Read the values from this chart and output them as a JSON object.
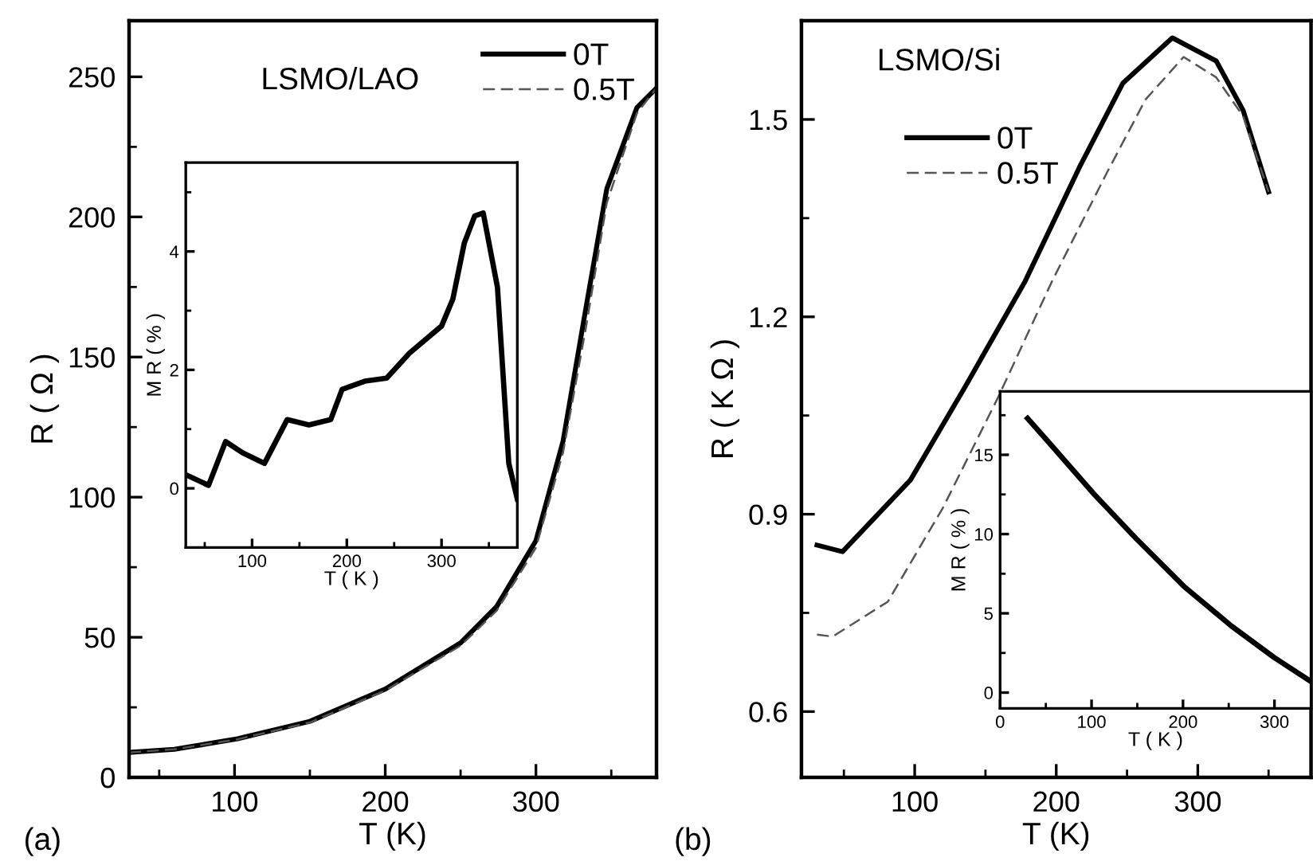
{
  "chart_data": [
    {
      "type": "line",
      "xlabel": "T (K)",
      "ylabel": "R ( Ω )",
      "xlim": [
        30,
        380
      ],
      "ylim": [
        0,
        270
      ],
      "xticks": [
        {
          "value": 50,
          "label": null
        },
        100,
        {
          "value": 150,
          "label": null
        },
        200,
        {
          "value": 250,
          "label": null
        },
        300,
        {
          "value": 350,
          "label": null
        }
      ],
      "yticks": [
        0,
        {
          "value": 25,
          "label": null
        },
        50,
        {
          "value": 75,
          "label": null
        },
        100,
        {
          "value": 125,
          "label": null
        },
        150,
        {
          "value": 175,
          "label": null
        },
        200,
        {
          "value": 225,
          "label": null
        },
        250
      ],
      "legend": "top right",
      "grid": false,
      "annotations": [
        "(a)",
        "LSMO/LAO"
      ],
      "series": [
        {
          "name": "0T",
          "color": "#000000",
          "line_style": "solid",
          "x": [
            30,
            60,
            102,
            150,
            200,
            250,
            274,
            300,
            318,
            333,
            347,
            367,
            380
          ],
          "values": [
            8.9,
            10,
            13.8,
            20,
            31.5,
            48,
            61,
            84.5,
            120,
            167,
            210,
            239,
            246
          ]
        },
        {
          "name": "0.5T",
          "color": "#555555",
          "line_style": "dashed",
          "x": [
            30,
            60,
            102,
            150,
            200,
            250,
            274,
            300,
            318,
            333,
            347,
            367,
            380
          ],
          "values": [
            8.9,
            10,
            13.6,
            19.6,
            31,
            47,
            59.5,
            82,
            116,
            160,
            205,
            237,
            246
          ]
        }
      ]
    },
    {
      "type": "line",
      "xlabel": "T ( K )",
      "ylabel": "M R ( % )",
      "xlim": [
        30,
        380
      ],
      "ylim": [
        -1,
        5.5
      ],
      "xticks": [
        {
          "value": 50,
          "label": null
        },
        100,
        {
          "value": 150,
          "label": null
        },
        200,
        {
          "value": 250,
          "label": null
        },
        300,
        {
          "value": 350,
          "label": null
        }
      ],
      "yticks": [
        0,
        {
          "value": 1,
          "label": null
        },
        2,
        {
          "value": 3,
          "label": null
        },
        4,
        {
          "value": 5,
          "label": null
        }
      ],
      "grid": false,
      "series": [
        {
          "color": "#000000",
          "line_style": "solid",
          "x": [
            30,
            54,
            72,
            90,
            113,
            137,
            160,
            183,
            195,
            219,
            242,
            266,
            300,
            312,
            324,
            335,
            344,
            359,
            371,
            380
          ],
          "values": [
            0.23,
            0.05,
            0.79,
            0.6,
            0.42,
            1.16,
            1.07,
            1.16,
            1.67,
            1.81,
            1.86,
            2.28,
            2.74,
            3.2,
            4.14,
            4.6,
            4.65,
            3.4,
            0.42,
            -0.18
          ]
        }
      ]
    },
    {
      "type": "line",
      "xlabel": "T (K)",
      "ylabel": "R ( K Ω )",
      "xlim": [
        20,
        380
      ],
      "ylim": [
        0.5,
        1.65
      ],
      "xticks": [
        {
          "value": 50,
          "label": null
        },
        100,
        {
          "value": 150,
          "label": null
        },
        200,
        {
          "value": 250,
          "label": null
        },
        300,
        {
          "value": 350,
          "label": null
        }
      ],
      "yticks": [
        0.6,
        {
          "value": 0.75,
          "label": null
        },
        0.9,
        {
          "value": 1.05,
          "label": null
        },
        1.2,
        {
          "value": 1.35,
          "label": null
        },
        1.5
      ],
      "legend": "top left",
      "grid": false,
      "annotations": [
        "(b)",
        "LSMO/Si"
      ],
      "series": [
        {
          "name": "0T",
          "color": "#000000",
          "line_style": "solid",
          "x": [
            31,
            49,
            97,
            136,
            178,
            217,
            247,
            282,
            313,
            332,
            350
          ],
          "values": [
            0.853,
            0.843,
            0.952,
            1.095,
            1.254,
            1.43,
            1.555,
            1.624,
            1.589,
            1.514,
            1.39
          ]
        },
        {
          "name": "0.5T",
          "color": "#555555",
          "line_style": "dashed",
          "x": [
            31,
            42,
            81,
            120,
            159,
            197,
            236,
            263,
            290,
            313,
            332,
            350
          ],
          "values": [
            0.717,
            0.714,
            0.767,
            0.91,
            1.078,
            1.254,
            1.42,
            1.53,
            1.595,
            1.564,
            1.505,
            1.39
          ]
        }
      ]
    },
    {
      "type": "line",
      "xlabel": "T ( K )",
      "ylabel": "M R ( % )",
      "xlim": [
        0,
        340
      ],
      "ylim": [
        -1,
        19
      ],
      "xticks": [
        0,
        {
          "value": 50,
          "label": null
        },
        100,
        {
          "value": 150,
          "label": null
        },
        200,
        {
          "value": 250,
          "label": null
        },
        300
      ],
      "yticks": [
        0,
        {
          "value": 2.5,
          "label": null
        },
        5,
        {
          "value": 7.5,
          "label": null
        },
        10,
        {
          "value": 12.5,
          "label": null
        },
        15,
        {
          "value": 17.5,
          "label": null
        }
      ],
      "grid": false,
      "series": [
        {
          "color": "#000000",
          "line_style": "solid",
          "x": [
            30,
            56,
            103,
            149,
            201,
            253,
            300,
            340
          ],
          "values": [
            17.3,
            15.6,
            12.5,
            9.7,
            6.7,
            4.2,
            2.2,
            0.7
          ]
        }
      ]
    }
  ]
}
